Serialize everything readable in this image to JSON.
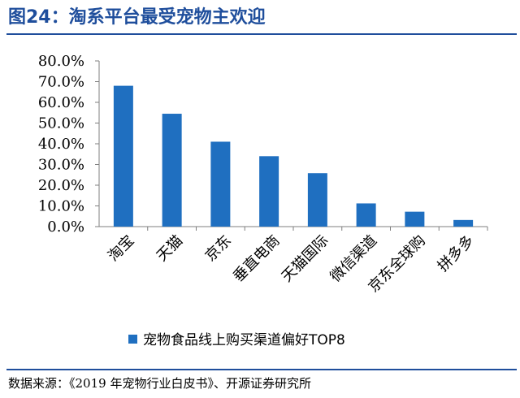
{
  "title": "图24：淘系平台最受宠物主欢迎",
  "source": "数据来源：《2019 年宠物行业白皮书》、开源证券研究所",
  "colors": {
    "bar": "#1f6fc0",
    "title": "#1f4e9c"
  },
  "chart_data": {
    "type": "bar",
    "categories": [
      "淘宝",
      "天猫",
      "京东",
      "垂直电商",
      "天猫国际",
      "微信渠道",
      "京东全球购",
      "拼多多"
    ],
    "series": [
      {
        "name": "宠物食品线上购买渠道偏好TOP8",
        "values": [
          68.0,
          54.5,
          41.0,
          34.0,
          25.8,
          11.2,
          7.2,
          3.2
        ]
      }
    ],
    "yticks": [
      "0.0%",
      "10.0%",
      "20.0%",
      "30.0%",
      "40.0%",
      "50.0%",
      "60.0%",
      "70.0%",
      "80.0%"
    ],
    "ylim": [
      0,
      80
    ],
    "grid": false,
    "legend_position": "bottom"
  }
}
